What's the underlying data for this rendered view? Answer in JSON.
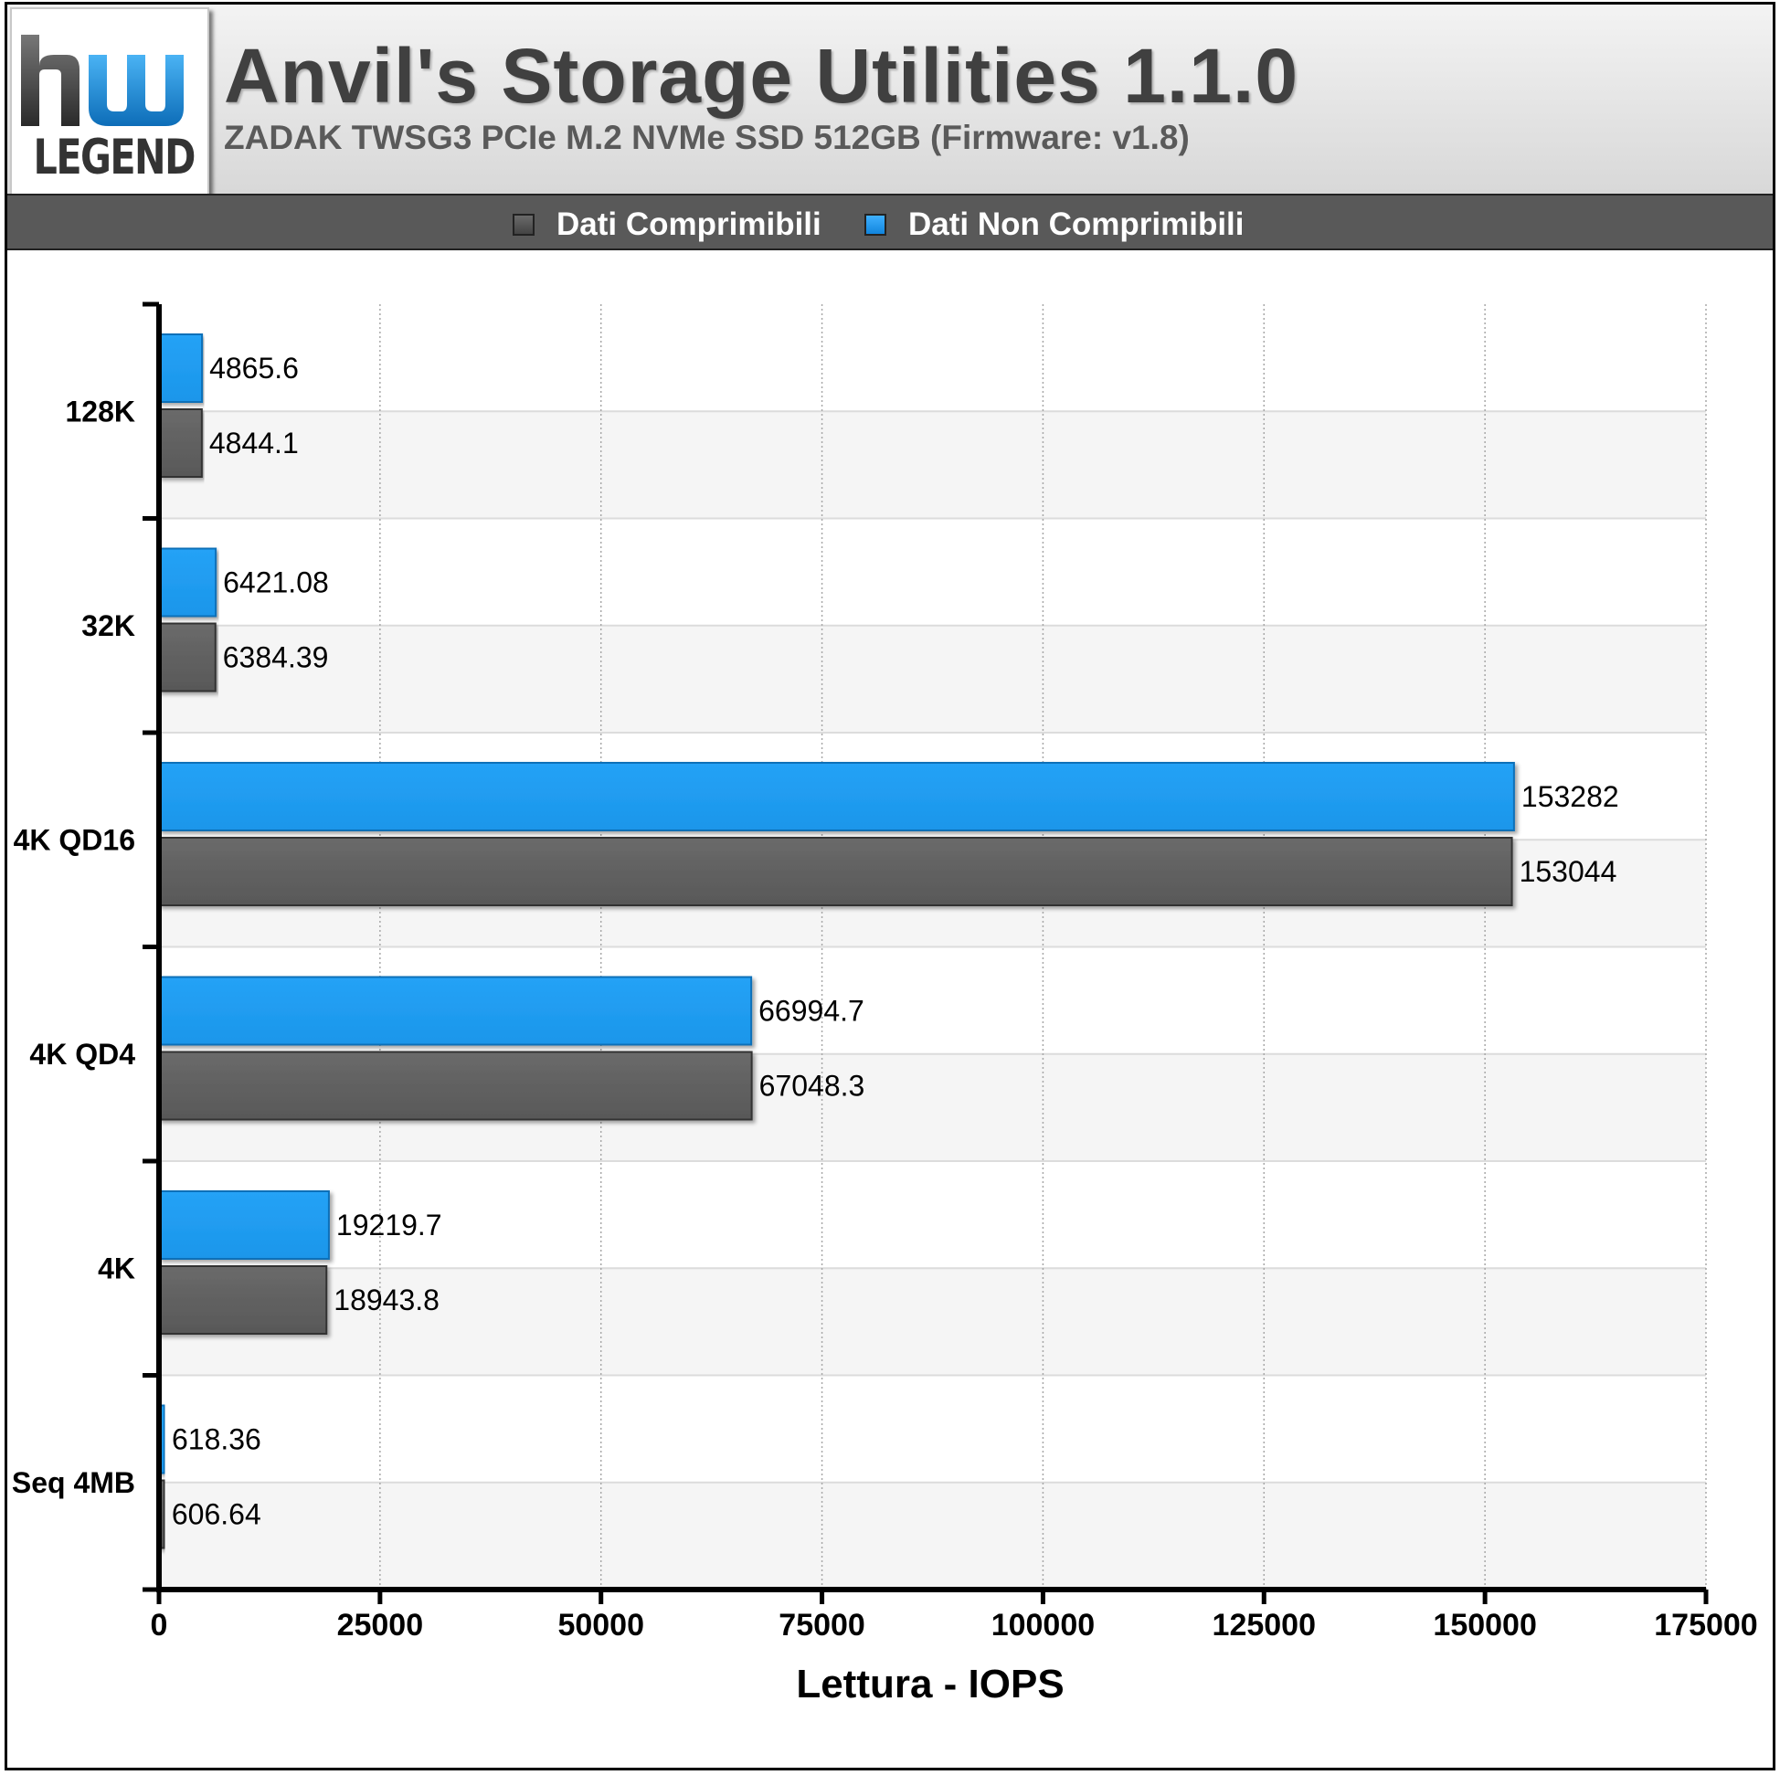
{
  "header": {
    "logo_text": "LEGEND",
    "title": "Anvil's Storage Utilities 1.1.0",
    "subtitle": "ZADAK TWSG3 PCIe M.2 NVMe SSD 512GB (Firmware: v1.8)"
  },
  "chart_data": {
    "type": "bar",
    "orientation": "horizontal",
    "title": "Anvil's Storage Utilities 1.1.0",
    "subtitle": "ZADAK TWSG3 PCIe M.2 NVMe SSD 512GB (Firmware: v1.8)",
    "xlabel": "Lettura - IOPS",
    "ylabel": "",
    "xlim": [
      0,
      175000
    ],
    "xticks": [
      0,
      25000,
      50000,
      75000,
      100000,
      125000,
      150000,
      175000
    ],
    "grid": true,
    "legend_position": "top",
    "categories": [
      "128K",
      "32K",
      "4K QD16",
      "4K QD4",
      "4K",
      "Seq 4MB"
    ],
    "series": [
      {
        "name": "Dati Comprimibili",
        "color": "#5f5f5f",
        "values": [
          4844.1,
          6384.39,
          153044,
          67048.3,
          18943.8,
          606.64
        ],
        "labels": [
          "4844.1",
          "6384.39",
          "153044",
          "67048.3",
          "18943.8",
          "606.64"
        ]
      },
      {
        "name": "Dati Non Comprimibili",
        "color": "#1e9cf0",
        "values": [
          4865.6,
          6421.08,
          153282,
          66994.7,
          19219.7,
          618.36
        ],
        "labels": [
          "4865.6",
          "6421.08",
          "153282",
          "66994.7",
          "19219.7",
          "618.36"
        ]
      }
    ]
  }
}
